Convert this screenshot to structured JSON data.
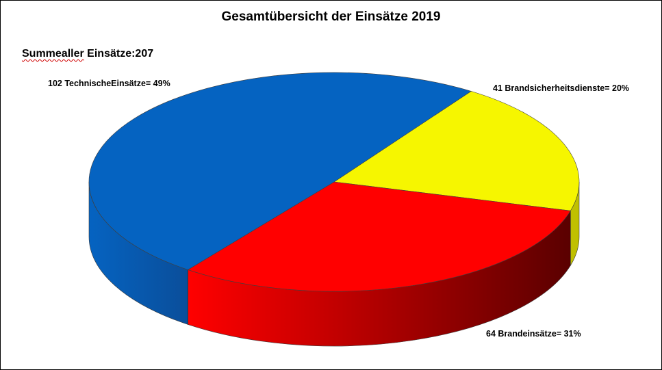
{
  "title": "Gesamtübersicht der Einsätze 2019",
  "summary": {
    "label_main": "Summealler",
    "label_rest": "Einsätze:",
    "total": "207"
  },
  "chart_data": {
    "type": "pie",
    "title": "Gesamtübersicht der Einsätze 2019",
    "total": 207,
    "three_d": true,
    "slices": [
      {
        "label": "41 Brandsicherheitsdienste= 20%",
        "value": 41,
        "percent": 20,
        "color": "#f6f600"
      },
      {
        "label": "64 Brandeinsätze= 31%",
        "value": 64,
        "percent": 31,
        "color": "#ff0000"
      },
      {
        "label": "102 TechnischeEinsätze= 49%",
        "value": 102,
        "percent": 49,
        "color": "#0563c1"
      }
    ]
  }
}
